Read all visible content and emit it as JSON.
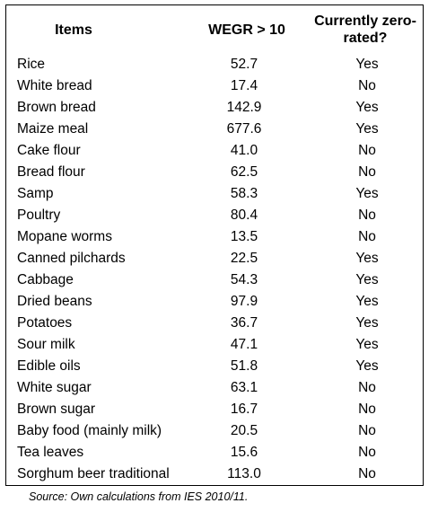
{
  "table": {
    "headers": [
      "Items",
      "WEGR > 10",
      "Currently zero-rated?"
    ],
    "rows": [
      [
        "Rice",
        "52.7",
        "Yes"
      ],
      [
        "White bread",
        "17.4",
        "No"
      ],
      [
        "Brown bread",
        "142.9",
        "Yes"
      ],
      [
        "Maize meal",
        "677.6",
        "Yes"
      ],
      [
        "Cake flour",
        "41.0",
        "No"
      ],
      [
        "Bread flour",
        "62.5",
        "No"
      ],
      [
        "Samp",
        "58.3",
        "Yes"
      ],
      [
        "Poultry",
        "80.4",
        "No"
      ],
      [
        "Mopane worms",
        "13.5",
        "No"
      ],
      [
        "Canned pilchards",
        "22.5",
        "Yes"
      ],
      [
        "Cabbage",
        "54.3",
        "Yes"
      ],
      [
        "Dried beans",
        "97.9",
        "Yes"
      ],
      [
        "Potatoes",
        "36.7",
        "Yes"
      ],
      [
        "Sour milk",
        "47.1",
        "Yes"
      ],
      [
        "Edible oils",
        "51.8",
        "Yes"
      ],
      [
        "White sugar",
        "63.1",
        "No"
      ],
      [
        "Brown sugar",
        "16.7",
        "No"
      ],
      [
        "Baby food (mainly milk)",
        "20.5",
        "No"
      ],
      [
        "Tea leaves",
        "15.6",
        "No"
      ],
      [
        "Sorghum beer traditional",
        "113.0",
        "No"
      ]
    ]
  },
  "source": "Source: Own calculations from IES 2010/11."
}
